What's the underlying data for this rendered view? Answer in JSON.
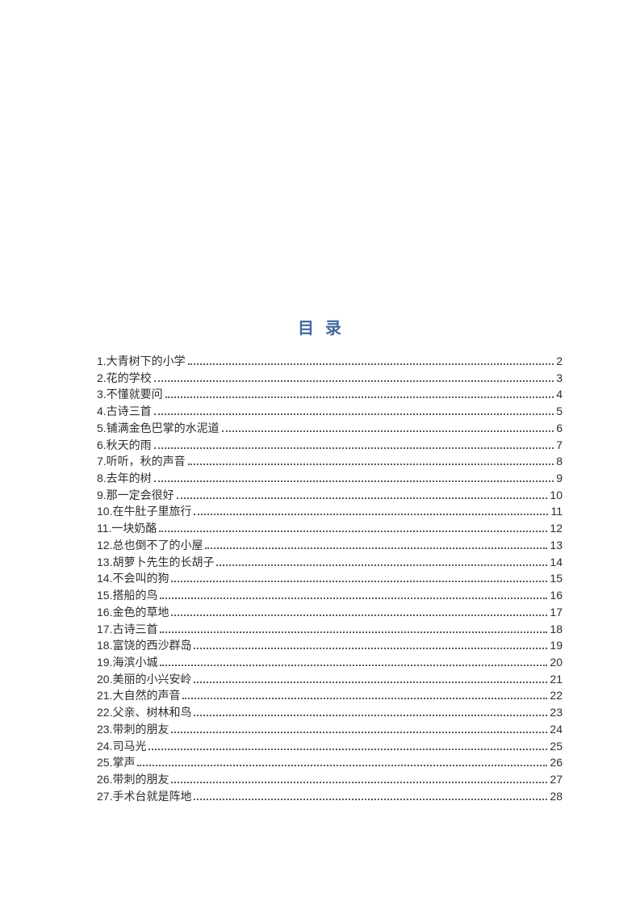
{
  "page": {
    "title": "目  录"
  },
  "colors": {
    "title_blue": "#44699c",
    "body_text": "#2d2d2d",
    "leader_dots": "#595959"
  },
  "toc": {
    "entries": [
      {
        "label": "1.大青树下的小学",
        "page": "2"
      },
      {
        "label": "2.花的学校",
        "page": "3"
      },
      {
        "label": "3.不懂就要问",
        "page": "4"
      },
      {
        "label": "4.古诗三首",
        "page": "5"
      },
      {
        "label": "5.铺满金色巴掌的水泥道",
        "page": "6"
      },
      {
        "label": "6.秋天的雨",
        "page": "7"
      },
      {
        "label": "7.听听，秋的声音",
        "page": "8"
      },
      {
        "label": "8.去年的树",
        "page": "9"
      },
      {
        "label": "9.那一定会很好",
        "page": "10"
      },
      {
        "label": "10.在牛肚子里旅行",
        "page": "11"
      },
      {
        "label": "11.一块奶酪",
        "page": "12"
      },
      {
        "label": "12.总也倒不了的小屋",
        "page": "13"
      },
      {
        "label": "13.胡萝卜先生的长胡子",
        "page": "14"
      },
      {
        "label": "14.不会叫的狗",
        "page": "15"
      },
      {
        "label": "15.搭船的鸟",
        "page": "16"
      },
      {
        "label": "16.金色的草地",
        "page": "17"
      },
      {
        "label": "17.古诗三首",
        "page": "18"
      },
      {
        "label": "18.富饶的西沙群岛",
        "page": "19"
      },
      {
        "label": "19.海滨小城",
        "page": "20"
      },
      {
        "label": "20.美丽的小兴安岭",
        "page": "21"
      },
      {
        "label": "21.大自然的声音",
        "page": "22"
      },
      {
        "label": "22.父亲、树林和鸟",
        "page": "23"
      },
      {
        "label": "23.带刺的朋友",
        "page": "24"
      },
      {
        "label": "24.司马光",
        "page": "25"
      },
      {
        "label": "25.掌声",
        "page": "26"
      },
      {
        "label": "26.带刺的朋友",
        "page": "27"
      },
      {
        "label": "27.手术台就是阵地",
        "page": "28"
      }
    ]
  }
}
